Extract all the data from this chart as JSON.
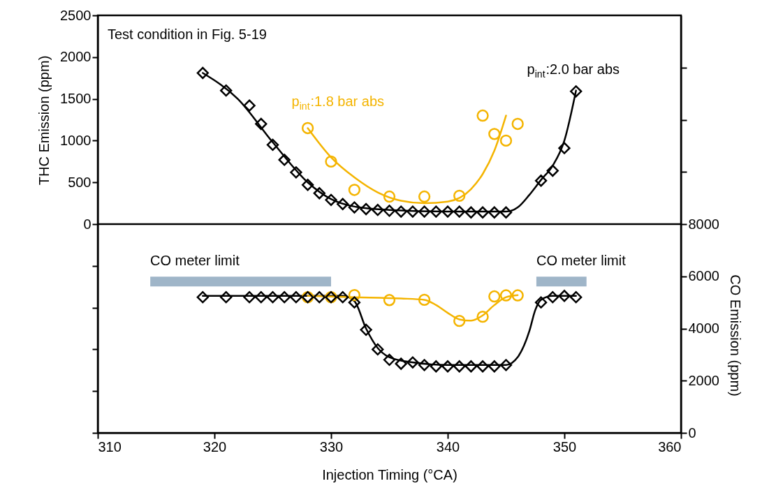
{
  "chart_data": {
    "type": "scatter",
    "xlabel": "Injection Timing (°CA)",
    "ylabel": "THC Emission (ppm)",
    "y2label": "CO Emission (ppm)",
    "xlim": [
      310,
      360
    ],
    "xticks": [
      310,
      320,
      330,
      340,
      350,
      360
    ],
    "ylim": [
      -2500,
      2500
    ],
    "yticks": [
      0,
      500,
      1000,
      1500,
      2000,
      2500,
      {
        "value": -500,
        "label": null
      },
      {
        "value": -1000,
        "label": null
      },
      {
        "value": -1500,
        "label": null
      },
      {
        "value": -2000,
        "label": null
      },
      {
        "value": -2500,
        "label": null
      }
    ],
    "y2lim": [
      0,
      16000
    ],
    "y2ticks": [
      0,
      2000,
      4000,
      6000,
      8000,
      {
        "value": 10000,
        "label": null
      },
      {
        "value": 12000,
        "label": null
      },
      {
        "value": 14000,
        "label": null
      }
    ],
    "grid": false,
    "series": [
      {
        "type": "line",
        "axis": "y",
        "color": "#000000",
        "marker": "none",
        "line_style": "solid",
        "x": [
          319,
          322,
          325,
          328,
          330,
          332,
          335,
          340,
          345,
          346,
          347,
          348,
          349,
          350,
          351
        ],
        "values": [
          1810,
          1500,
          980,
          500,
          300,
          210,
          170,
          150,
          150,
          200,
          350,
          530,
          700,
          1000,
          1600
        ]
      },
      {
        "type": "line",
        "axis": "y",
        "color": "#f4b400",
        "marker": "none",
        "line_style": "solid",
        "x": [
          328,
          330,
          332,
          334,
          336,
          338,
          340,
          342,
          343,
          344,
          345
        ],
        "values": [
          1150,
          800,
          560,
          380,
          280,
          250,
          270,
          420,
          600,
          880,
          1300
        ]
      },
      {
        "name": "p$_{int}$:2.0 bar abs",
        "axis": "y",
        "color": "#000000",
        "marker": "diamond",
        "x": [
          319,
          321,
          323,
          324,
          325,
          326,
          327,
          328,
          329,
          330,
          331,
          332,
          333,
          334,
          335,
          336,
          337,
          338,
          339,
          340,
          341,
          342,
          343,
          344,
          345,
          348,
          349,
          350,
          351
        ],
        "values": [
          1810,
          1600,
          1420,
          1200,
          950,
          770,
          620,
          470,
          370,
          290,
          240,
          200,
          180,
          170,
          160,
          150,
          150,
          150,
          150,
          150,
          150,
          140,
          140,
          140,
          140,
          520,
          640,
          910,
          1590
        ]
      },
      {
        "name": "p$_{int}$:1.8 bar abs",
        "axis": "y",
        "color": "#f4b400",
        "marker": "circle",
        "x": [
          328,
          330,
          332,
          335,
          338,
          341,
          343,
          344,
          345,
          346
        ],
        "values": [
          1150,
          750,
          410,
          330,
          330,
          340,
          1300,
          1080,
          1000,
          1200
        ]
      },
      {
        "type": "line",
        "axis": "y2",
        "color": "#000000",
        "marker": "none",
        "line_style": "solid",
        "x": [
          319,
          331,
          332,
          333,
          334,
          335,
          337,
          340,
          345,
          346,
          347,
          347.5,
          348,
          349,
          351
        ],
        "values": [
          5250,
          5250,
          5050,
          4000,
          3250,
          2900,
          2700,
          2600,
          2600,
          2900,
          3900,
          4700,
          5100,
          5250,
          5250
        ]
      },
      {
        "type": "line",
        "axis": "y2",
        "color": "#f4b400",
        "marker": "none",
        "line_style": "solid",
        "x": [
          328,
          332,
          336,
          338,
          339,
          340,
          341,
          342,
          343,
          344,
          345,
          346
        ],
        "values": [
          5250,
          5200,
          5150,
          5100,
          4900,
          4600,
          4350,
          4300,
          4500,
          4900,
          5200,
          5280
        ]
      },
      {
        "axis": "y2",
        "color": "#f4b400",
        "marker": "circle",
        "x": [
          328,
          330,
          332,
          335,
          338,
          341,
          343,
          344,
          345,
          346
        ],
        "values": [
          5200,
          5200,
          5280,
          5090,
          5100,
          4290,
          4450,
          5230,
          5270,
          5270
        ]
      },
      {
        "axis": "y2",
        "color": "#000000",
        "marker": "diamond",
        "x": [
          319,
          321,
          323,
          324,
          325,
          326,
          327,
          328,
          329,
          330,
          331,
          332,
          333,
          334,
          335,
          336,
          337,
          338,
          339,
          340,
          341,
          342,
          343,
          344,
          345,
          348,
          349,
          350,
          351
        ],
        "values": [
          5200,
          5200,
          5200,
          5200,
          5200,
          5200,
          5200,
          5200,
          5200,
          5200,
          5200,
          5000,
          3950,
          3200,
          2800,
          2650,
          2700,
          2600,
          2550,
          2550,
          2550,
          2550,
          2550,
          2550,
          2600,
          5000,
          5200,
          5250,
          5200
        ]
      },
      {
        "type": "line",
        "axis": "y2",
        "color": "#9fb5c8",
        "line_style": "solid",
        "x": [
          314.5,
          330
        ],
        "values": [
          5800,
          5800
        ]
      },
      {
        "type": "line",
        "axis": "y2",
        "color": "#9fb5c8",
        "line_style": "solid",
        "x": [
          347.6,
          351.9
        ],
        "values": [
          5800,
          5800
        ]
      }
    ],
    "ref_lines": [
      {
        "axis": "y",
        "value": 0,
        "color": "#000000"
      }
    ],
    "annotations": [
      "Test condition in Fig. 5-19",
      "CO meter limit",
      "CO meter limit"
    ]
  }
}
